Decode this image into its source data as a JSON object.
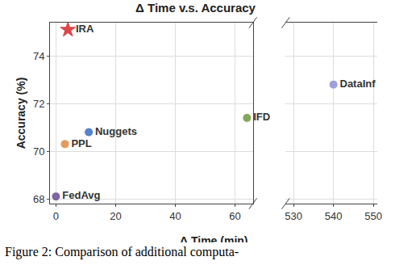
{
  "chart_data": {
    "type": "scatter",
    "title": "Δ Time v.s. Accuracy",
    "x_label": "Δ Time (min)",
    "y_label": "Accuracy (%)",
    "caption": "Figure 2: Comparison of additional computa-",
    "xlim": [
      -2,
      66
    ],
    "xticks": [
      0,
      20,
      40,
      60
    ],
    "x2lim": [
      528,
      551
    ],
    "x2ticks": [
      530,
      540,
      550
    ],
    "ylim": [
      67.8,
      75.4
    ],
    "yticks": [
      68,
      70,
      72,
      74
    ],
    "grid": true,
    "series": [
      {
        "name": "IRA",
        "color": "#d62728",
        "marker": "star",
        "x": [
          4
        ],
        "values": [
          75.1
        ]
      },
      {
        "name": "Nuggets",
        "color": "#3a6fc4",
        "marker": "circle",
        "x": [
          11
        ],
        "values": [
          70.8
        ]
      },
      {
        "name": "PPL",
        "color": "#e08a3c",
        "marker": "circle",
        "x": [
          3
        ],
        "values": [
          70.3
        ]
      },
      {
        "name": "FedAvg",
        "color": "#6a4c93",
        "marker": "circle",
        "x": [
          0
        ],
        "values": [
          68.1
        ]
      },
      {
        "name": "IFD",
        "color": "#6f9a3c",
        "marker": "circle",
        "x": [
          64
        ],
        "values": [
          71.4
        ]
      },
      {
        "name": "DataInf",
        "color": "#8f8fd6",
        "marker": "circle",
        "x": [
          540
        ],
        "values": [
          72.8
        ],
        "axis": "x2"
      }
    ]
  }
}
